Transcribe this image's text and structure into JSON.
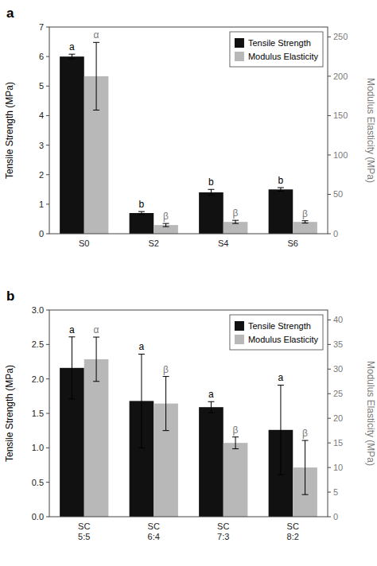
{
  "chart_data": [
    {
      "type": "bar",
      "title": "a",
      "categories": [
        "S0",
        "S2",
        "S4",
        "S6"
      ],
      "series": [
        {
          "name": "Tensile Strength",
          "color": "#111111",
          "values": [
            6.0,
            0.7,
            1.4,
            1.5
          ],
          "errors": [
            0.08,
            0.05,
            0.1,
            0.06
          ],
          "annotations": [
            "a",
            "b",
            "b",
            "b"
          ]
        },
        {
          "name": "Modulus Elasticity",
          "color": "#b8b8b8",
          "axis": "y2",
          "values": [
            200,
            11,
            15,
            15
          ],
          "errors": [
            43,
            2,
            2,
            1.5
          ],
          "annotations": [
            "α",
            "β",
            "β",
            "β"
          ]
        }
      ],
      "ylabel": "Tensile Strength (MPa)",
      "y2label": "Modulus Elasticity (MPa)",
      "ylim": [
        0,
        7
      ],
      "yticks": [
        0,
        1,
        2,
        3,
        4,
        5,
        6,
        7
      ],
      "y2lim": [
        0,
        262.5
      ],
      "y2ticks": [
        0,
        50,
        100,
        150,
        200,
        250
      ],
      "legend": "upper right",
      "grid": false
    },
    {
      "type": "bar",
      "title": "b",
      "categories": [
        "SC\n5:5",
        "SC\n6:4",
        "SC\n7:3",
        "SC\n8:2"
      ],
      "series": [
        {
          "name": "Tensile Strength",
          "color": "#111111",
          "values": [
            2.16,
            1.68,
            1.59,
            1.26
          ],
          "errors": [
            0.45,
            0.68,
            0.08,
            0.65
          ],
          "annotations": [
            "a",
            "a",
            "a",
            "a"
          ]
        },
        {
          "name": "Modulus Elasticity",
          "color": "#b8b8b8",
          "axis": "y2",
          "values": [
            32,
            23,
            15,
            10
          ],
          "errors": [
            4.5,
            5.5,
            1.2,
            5.5
          ],
          "annotations": [
            "α",
            "β",
            "β",
            "β"
          ]
        }
      ],
      "ylabel": "Tensile Strength (MPa)",
      "y2label": "Modulus Elasticity (MPa)",
      "ylim": [
        0,
        3.0
      ],
      "yticks": [
        {
          "value": 0,
          "label": "0.0"
        },
        0.5,
        {
          "value": 1,
          "label": "1.0"
        },
        1.5,
        {
          "value": 2,
          "label": "2.0"
        },
        2.5,
        {
          "value": 3,
          "label": "3.0"
        }
      ],
      "y2lim": [
        0,
        42.0
      ],
      "y2ticks": [
        0,
        5,
        10,
        15,
        20,
        25,
        30,
        35,
        40
      ],
      "legend": "upper right",
      "grid": false
    }
  ]
}
